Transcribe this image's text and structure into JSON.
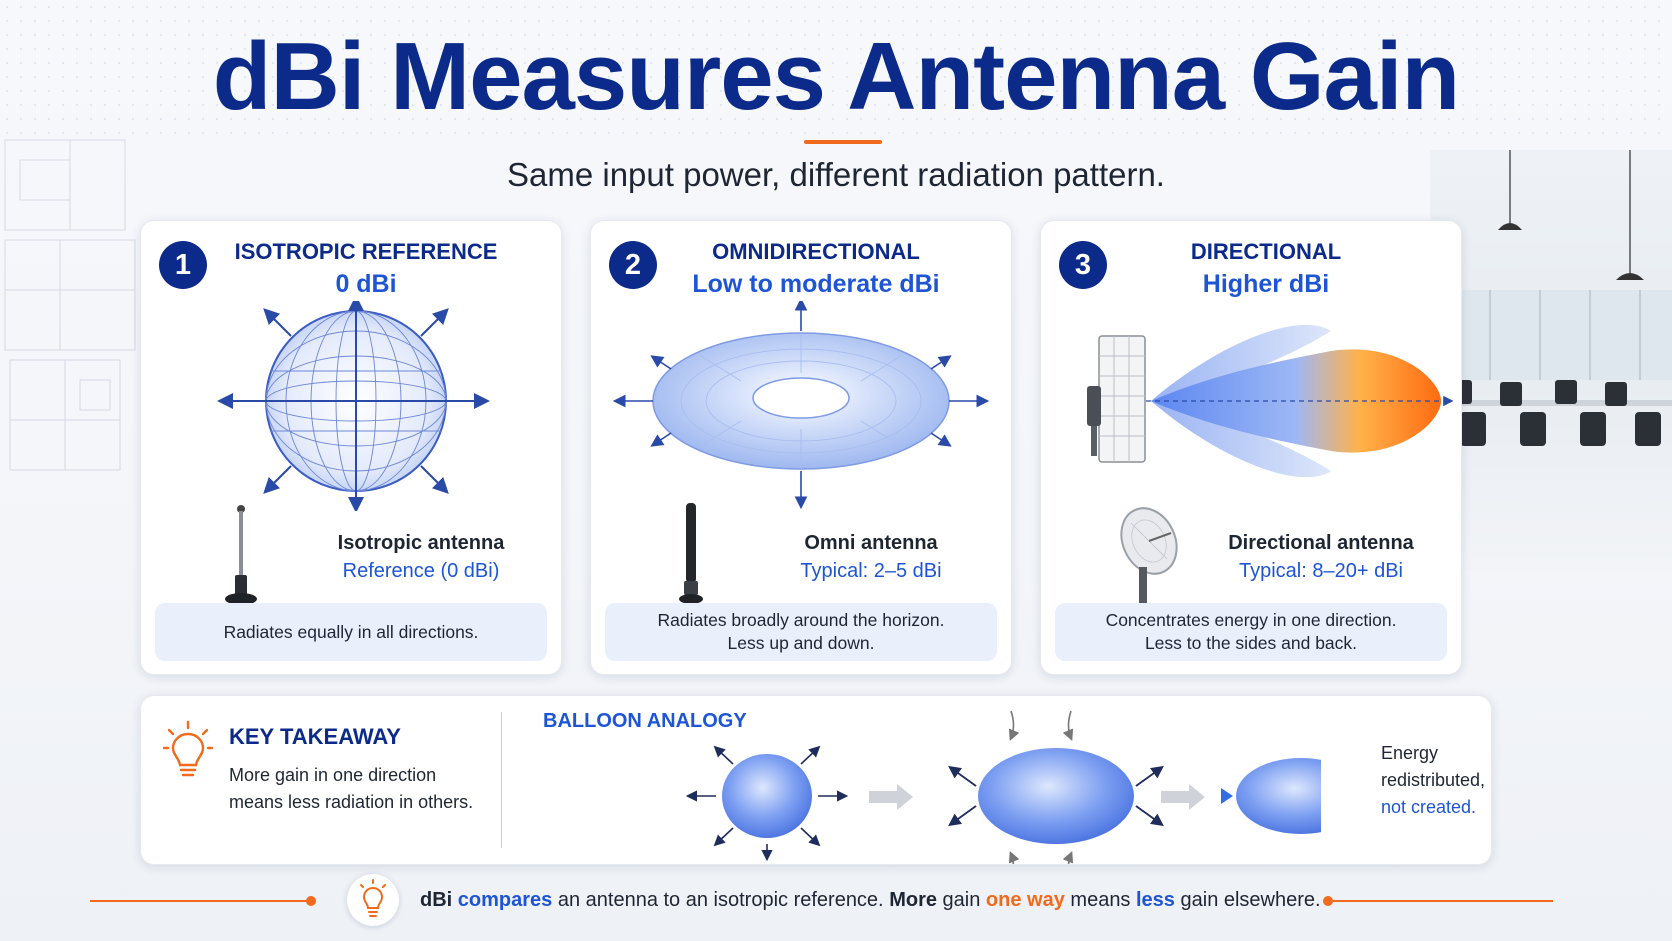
{
  "title": "dBi Measures Antenna Gain",
  "subtitle": "Same input power, different radiation pattern.",
  "cards": [
    {
      "number": "1",
      "heading": "ISOTROPIC REFERENCE",
      "gain": "0 dBi",
      "antenna_name": "Isotropic antenna",
      "antenna_type": "Reference (0 dBi)",
      "description": [
        "Radiates equally in all directions."
      ]
    },
    {
      "number": "2",
      "heading": "OMNIDIRECTIONAL",
      "gain": "Low to moderate dBi",
      "antenna_name": "Omni antenna",
      "antenna_type": "Typical: 2–5 dBi",
      "description": [
        "Radiates broadly around the horizon.",
        "Less up and down."
      ]
    },
    {
      "number": "3",
      "heading": "DIRECTIONAL",
      "gain": "Higher dBi",
      "antenna_name": "Directional antenna",
      "antenna_type": "Typical: 8–20+ dBi",
      "description": [
        "Concentrates energy in one direction.",
        "Less to the sides and back."
      ]
    }
  ],
  "takeaway": {
    "title": "KEY TAKEAWAY",
    "line1": "More gain in one direction",
    "line2": "means less radiation in others."
  },
  "balloon": {
    "title": "BALLOON ANALOGY",
    "energy_line1": "Energy",
    "energy_line2": "redistributed,",
    "energy_line3": "not created."
  },
  "footer": {
    "p1": "dBi",
    "p2": "compares",
    "p3": "an antenna to an isotropic reference.",
    "p4": "More",
    "p5": "gain",
    "p6": "one way",
    "p7": "means",
    "p8": "less",
    "p9": "gain elsewhere."
  },
  "colors": {
    "navy": "#0c2a8a",
    "blue": "#1d55d4",
    "orange": "#f26a1b",
    "panel": "#eaf0fb"
  },
  "icons": [
    "lightbulb-icon",
    "arrow-right-icon",
    "isotropic-sphere-icon",
    "torus-pattern-icon",
    "directional-lobe-icon"
  ]
}
